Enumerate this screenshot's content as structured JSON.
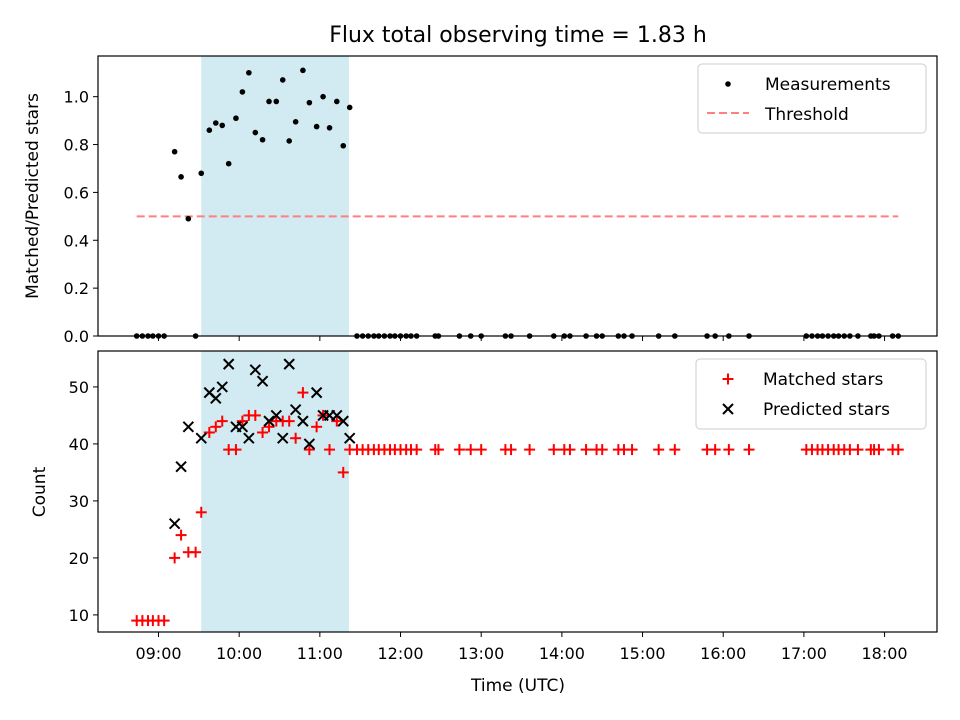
{
  "title": "Flux total observing time = 1.83 h",
  "colors": {
    "measurement": "#000000",
    "threshold": "#ff7f7f",
    "matched": "#ff0000",
    "predicted": "#000000",
    "shade": "#add8e6"
  },
  "chart_data": [
    {
      "type": "scatter",
      "name": "ratio-panel",
      "ylabel": "Matched/Predicted stars",
      "xlim": [
        8.25,
        18.65
      ],
      "ylim": [
        0.0,
        1.17
      ],
      "yticks": [
        0.0,
        0.2,
        0.4,
        0.6,
        0.8,
        1.0
      ],
      "ytick_labels": [
        "0.0",
        "0.2",
        "0.4",
        "0.6",
        "0.8",
        "1.0"
      ],
      "legend": [
        "Measurements",
        "Threshold"
      ],
      "legend_position": "top-right",
      "shaded_x": [
        9.53,
        11.36
      ],
      "threshold": {
        "y": 0.5,
        "x": [
          8.73,
          18.17
        ]
      },
      "measurements": [
        [
          8.73,
          0
        ],
        [
          8.8,
          0
        ],
        [
          8.87,
          0
        ],
        [
          8.93,
          0
        ],
        [
          9.0,
          0
        ],
        [
          9.07,
          0
        ],
        [
          9.2,
          0.77
        ],
        [
          9.28,
          0.665
        ],
        [
          9.37,
          0.49
        ],
        [
          9.46,
          0
        ],
        [
          9.53,
          0.68
        ],
        [
          9.63,
          0.86
        ],
        [
          9.71,
          0.89
        ],
        [
          9.79,
          0.88
        ],
        [
          9.87,
          0.72
        ],
        [
          9.96,
          0.91
        ],
        [
          10.04,
          1.02
        ],
        [
          10.12,
          1.1
        ],
        [
          10.2,
          0.85
        ],
        [
          10.29,
          0.82
        ],
        [
          10.37,
          0.98
        ],
        [
          10.46,
          0.98
        ],
        [
          10.54,
          1.07
        ],
        [
          10.62,
          0.815
        ],
        [
          10.7,
          0.895
        ],
        [
          10.79,
          1.11
        ],
        [
          10.87,
          0.975
        ],
        [
          10.96,
          0.875
        ],
        [
          11.04,
          1.0
        ],
        [
          11.12,
          0.87
        ],
        [
          11.21,
          0.98
        ],
        [
          11.29,
          0.795
        ],
        [
          11.37,
          0.955
        ],
        [
          11.46,
          0
        ],
        [
          11.53,
          0
        ],
        [
          11.6,
          0
        ],
        [
          11.67,
          0
        ],
        [
          11.73,
          0
        ],
        [
          11.8,
          0
        ],
        [
          11.87,
          0
        ],
        [
          11.93,
          0
        ],
        [
          12.0,
          0
        ],
        [
          12.07,
          0
        ],
        [
          12.13,
          0
        ],
        [
          12.2,
          0
        ],
        [
          12.43,
          0
        ],
        [
          12.47,
          0
        ],
        [
          12.73,
          0
        ],
        [
          12.87,
          0
        ],
        [
          13.0,
          0
        ],
        [
          13.3,
          0
        ],
        [
          13.37,
          0
        ],
        [
          13.6,
          0
        ],
        [
          13.9,
          0
        ],
        [
          14.03,
          0
        ],
        [
          14.1,
          0
        ],
        [
          14.3,
          0
        ],
        [
          14.43,
          0
        ],
        [
          14.5,
          0
        ],
        [
          14.7,
          0
        ],
        [
          14.77,
          0
        ],
        [
          14.87,
          0
        ],
        [
          15.2,
          0
        ],
        [
          15.4,
          0
        ],
        [
          15.8,
          0
        ],
        [
          15.9,
          0
        ],
        [
          16.07,
          0
        ],
        [
          16.32,
          0
        ],
        [
          17.03,
          0
        ],
        [
          17.1,
          0
        ],
        [
          17.17,
          0
        ],
        [
          17.23,
          0
        ],
        [
          17.3,
          0
        ],
        [
          17.37,
          0
        ],
        [
          17.43,
          0
        ],
        [
          17.5,
          0
        ],
        [
          17.57,
          0
        ],
        [
          17.67,
          0
        ],
        [
          17.83,
          0
        ],
        [
          17.87,
          0
        ],
        [
          17.93,
          0
        ],
        [
          18.1,
          0
        ],
        [
          18.17,
          0
        ]
      ]
    },
    {
      "type": "scatter",
      "name": "count-panel",
      "ylabel": "Count",
      "xlabel": "Time (UTC)",
      "xlim": [
        8.25,
        18.65
      ],
      "ylim": [
        7,
        56.3
      ],
      "yticks": [
        10,
        20,
        30,
        40,
        50
      ],
      "ytick_labels": [
        "10",
        "20",
        "30",
        "40",
        "50"
      ],
      "xticks": [
        9,
        10,
        11,
        12,
        13,
        14,
        15,
        16,
        17,
        18
      ],
      "xtick_labels": [
        "09:00",
        "10:00",
        "11:00",
        "12:00",
        "13:00",
        "14:00",
        "15:00",
        "16:00",
        "17:00",
        "18:00"
      ],
      "legend": [
        "Matched stars",
        "Predicted stars"
      ],
      "legend_position": "top-right",
      "shaded_x": [
        9.53,
        11.36
      ],
      "series": [
        {
          "name": "Matched stars",
          "points": [
            [
              8.73,
              9
            ],
            [
              8.8,
              9
            ],
            [
              8.87,
              9
            ],
            [
              8.93,
              9
            ],
            [
              9.0,
              9
            ],
            [
              9.07,
              9
            ],
            [
              9.2,
              20
            ],
            [
              9.28,
              24
            ],
            [
              9.37,
              21
            ],
            [
              9.46,
              21
            ],
            [
              9.53,
              28
            ],
            [
              9.63,
              42
            ],
            [
              9.71,
              43
            ],
            [
              9.79,
              44
            ],
            [
              9.87,
              39
            ],
            [
              9.96,
              39
            ],
            [
              10.04,
              44
            ],
            [
              10.12,
              45
            ],
            [
              10.2,
              45
            ],
            [
              10.29,
              42
            ],
            [
              10.37,
              43
            ],
            [
              10.46,
              44
            ],
            [
              10.54,
              44
            ],
            [
              10.62,
              44
            ],
            [
              10.7,
              41
            ],
            [
              10.79,
              49
            ],
            [
              10.87,
              39
            ],
            [
              10.96,
              43
            ],
            [
              11.04,
              45
            ],
            [
              11.12,
              39
            ],
            [
              11.21,
              44
            ],
            [
              11.29,
              35
            ],
            [
              11.37,
              39
            ],
            [
              11.46,
              39
            ],
            [
              11.53,
              39
            ],
            [
              11.6,
              39
            ],
            [
              11.67,
              39
            ],
            [
              11.73,
              39
            ],
            [
              11.8,
              39
            ],
            [
              11.87,
              39
            ],
            [
              11.93,
              39
            ],
            [
              12.0,
              39
            ],
            [
              12.07,
              39
            ],
            [
              12.13,
              39
            ],
            [
              12.2,
              39
            ],
            [
              12.43,
              39
            ],
            [
              12.47,
              39
            ],
            [
              12.73,
              39
            ],
            [
              12.87,
              39
            ],
            [
              13.0,
              39
            ],
            [
              13.3,
              39
            ],
            [
              13.37,
              39
            ],
            [
              13.6,
              39
            ],
            [
              13.9,
              39
            ],
            [
              14.03,
              39
            ],
            [
              14.1,
              39
            ],
            [
              14.3,
              39
            ],
            [
              14.43,
              39
            ],
            [
              14.5,
              39
            ],
            [
              14.7,
              39
            ],
            [
              14.77,
              39
            ],
            [
              14.87,
              39
            ],
            [
              15.2,
              39
            ],
            [
              15.4,
              39
            ],
            [
              15.8,
              39
            ],
            [
              15.9,
              39
            ],
            [
              16.07,
              39
            ],
            [
              16.32,
              39
            ],
            [
              17.03,
              39
            ],
            [
              17.1,
              39
            ],
            [
              17.17,
              39
            ],
            [
              17.23,
              39
            ],
            [
              17.3,
              39
            ],
            [
              17.37,
              39
            ],
            [
              17.43,
              39
            ],
            [
              17.5,
              39
            ],
            [
              17.57,
              39
            ],
            [
              17.67,
              39
            ],
            [
              17.83,
              39
            ],
            [
              17.87,
              39
            ],
            [
              17.93,
              39
            ],
            [
              18.1,
              39
            ],
            [
              18.17,
              39
            ]
          ]
        },
        {
          "name": "Predicted stars",
          "points": [
            [
              9.2,
              26
            ],
            [
              9.28,
              36
            ],
            [
              9.37,
              43
            ],
            [
              9.53,
              41
            ],
            [
              9.63,
              49
            ],
            [
              9.71,
              48
            ],
            [
              9.79,
              50
            ],
            [
              9.87,
              54
            ],
            [
              9.96,
              43
            ],
            [
              10.04,
              43
            ],
            [
              10.12,
              41
            ],
            [
              10.2,
              53
            ],
            [
              10.29,
              51
            ],
            [
              10.37,
              44
            ],
            [
              10.46,
              45
            ],
            [
              10.54,
              41
            ],
            [
              10.62,
              54
            ],
            [
              10.7,
              46
            ],
            [
              10.79,
              44
            ],
            [
              10.87,
              40
            ],
            [
              10.96,
              49
            ],
            [
              11.04,
              45
            ],
            [
              11.12,
              45
            ],
            [
              11.21,
              45
            ],
            [
              11.29,
              44
            ],
            [
              11.37,
              41
            ]
          ]
        }
      ]
    }
  ]
}
